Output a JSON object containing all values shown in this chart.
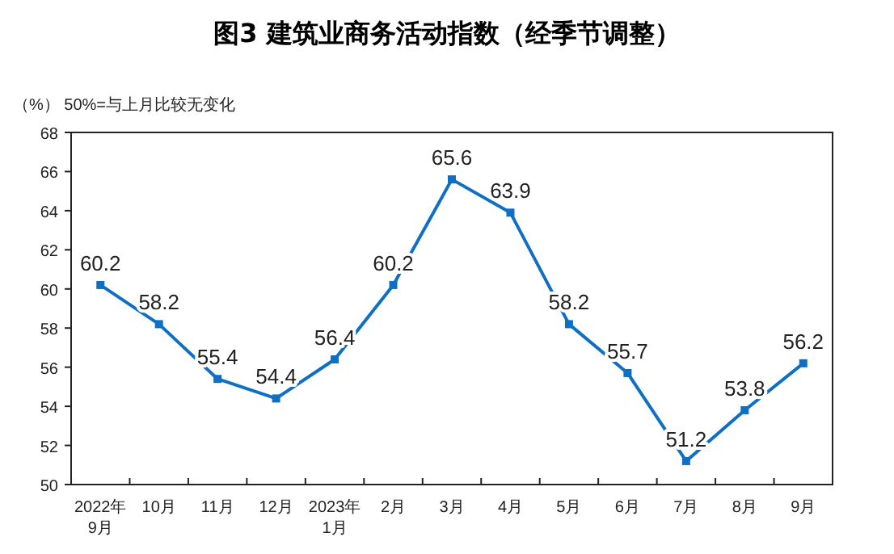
{
  "chart_data": {
    "type": "line",
    "title": "图3  建筑业商务活动指数（经季节调整）",
    "annotations": [
      "（%）  50%=与上月比较无变化"
    ],
    "categories": [
      "2022年\n9月",
      "10月",
      "11月",
      "12月",
      "2023年\n1月",
      "2月",
      "3月",
      "4月",
      "5月",
      "6月",
      "7月",
      "8月",
      "9月"
    ],
    "series": [
      {
        "color": "#0e6fc4",
        "values": [
          60.2,
          58.2,
          55.4,
          54.4,
          56.4,
          60.2,
          65.6,
          63.9,
          58.2,
          55.7,
          51.2,
          53.8,
          56.2
        ]
      }
    ],
    "ylim": [
      50,
      68
    ],
    "yticks": [
      50,
      52,
      54,
      56,
      58,
      60,
      62,
      64,
      66,
      68
    ],
    "grid": false,
    "marker": "square",
    "line_style": "solid",
    "data_labels": true
  }
}
